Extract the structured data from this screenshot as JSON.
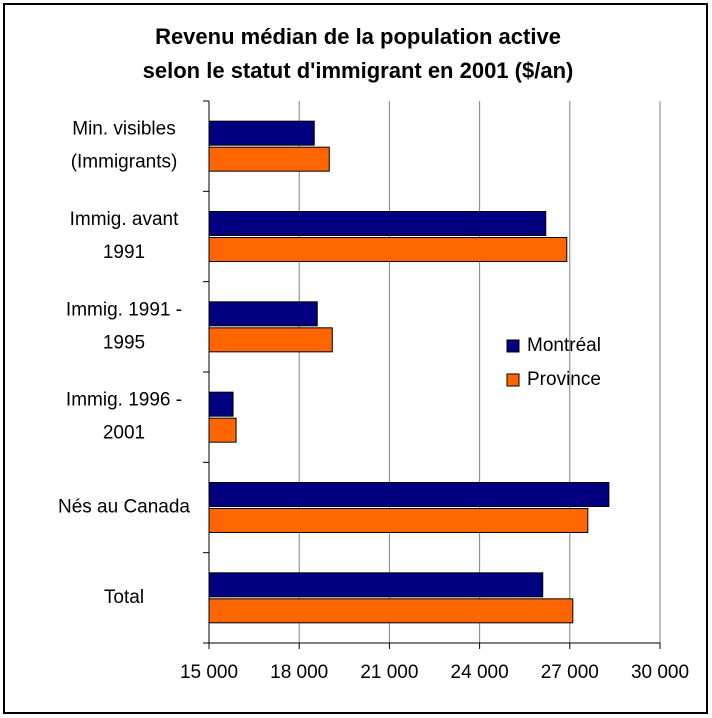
{
  "chart_data": {
    "type": "bar",
    "orientation": "horizontal",
    "title": [
      "Revenu médian de la population active",
      "selon le statut d'immigrant en 2001 ($/an)"
    ],
    "categories": [
      [
        "Min. visibles",
        "(Immigrants)"
      ],
      [
        "Immig. avant",
        "1991"
      ],
      [
        "Immig. 1991 -",
        "1995"
      ],
      [
        "Immig. 1996 -",
        "2001"
      ],
      [
        "Nés au Canada"
      ],
      [
        "Total"
      ]
    ],
    "series": [
      {
        "name": "Montréal",
        "color": "#000080",
        "values": [
          18500,
          26200,
          18600,
          15800,
          28300,
          26100
        ]
      },
      {
        "name": "Province",
        "color": "#ff6600",
        "values": [
          19000,
          26900,
          19100,
          15900,
          27600,
          27100
        ]
      }
    ],
    "xlim": [
      15000,
      30000
    ],
    "xticks": [
      {
        "value": 15000,
        "label": "15 000"
      },
      {
        "value": 18000,
        "label": "18 000"
      },
      {
        "value": 21000,
        "label": "21 000"
      },
      {
        "value": 24000,
        "label": "24 000"
      },
      {
        "value": 27000,
        "label": "27 000"
      },
      {
        "value": 30000,
        "label": "30 000"
      }
    ],
    "grid": true,
    "legend": "right"
  }
}
